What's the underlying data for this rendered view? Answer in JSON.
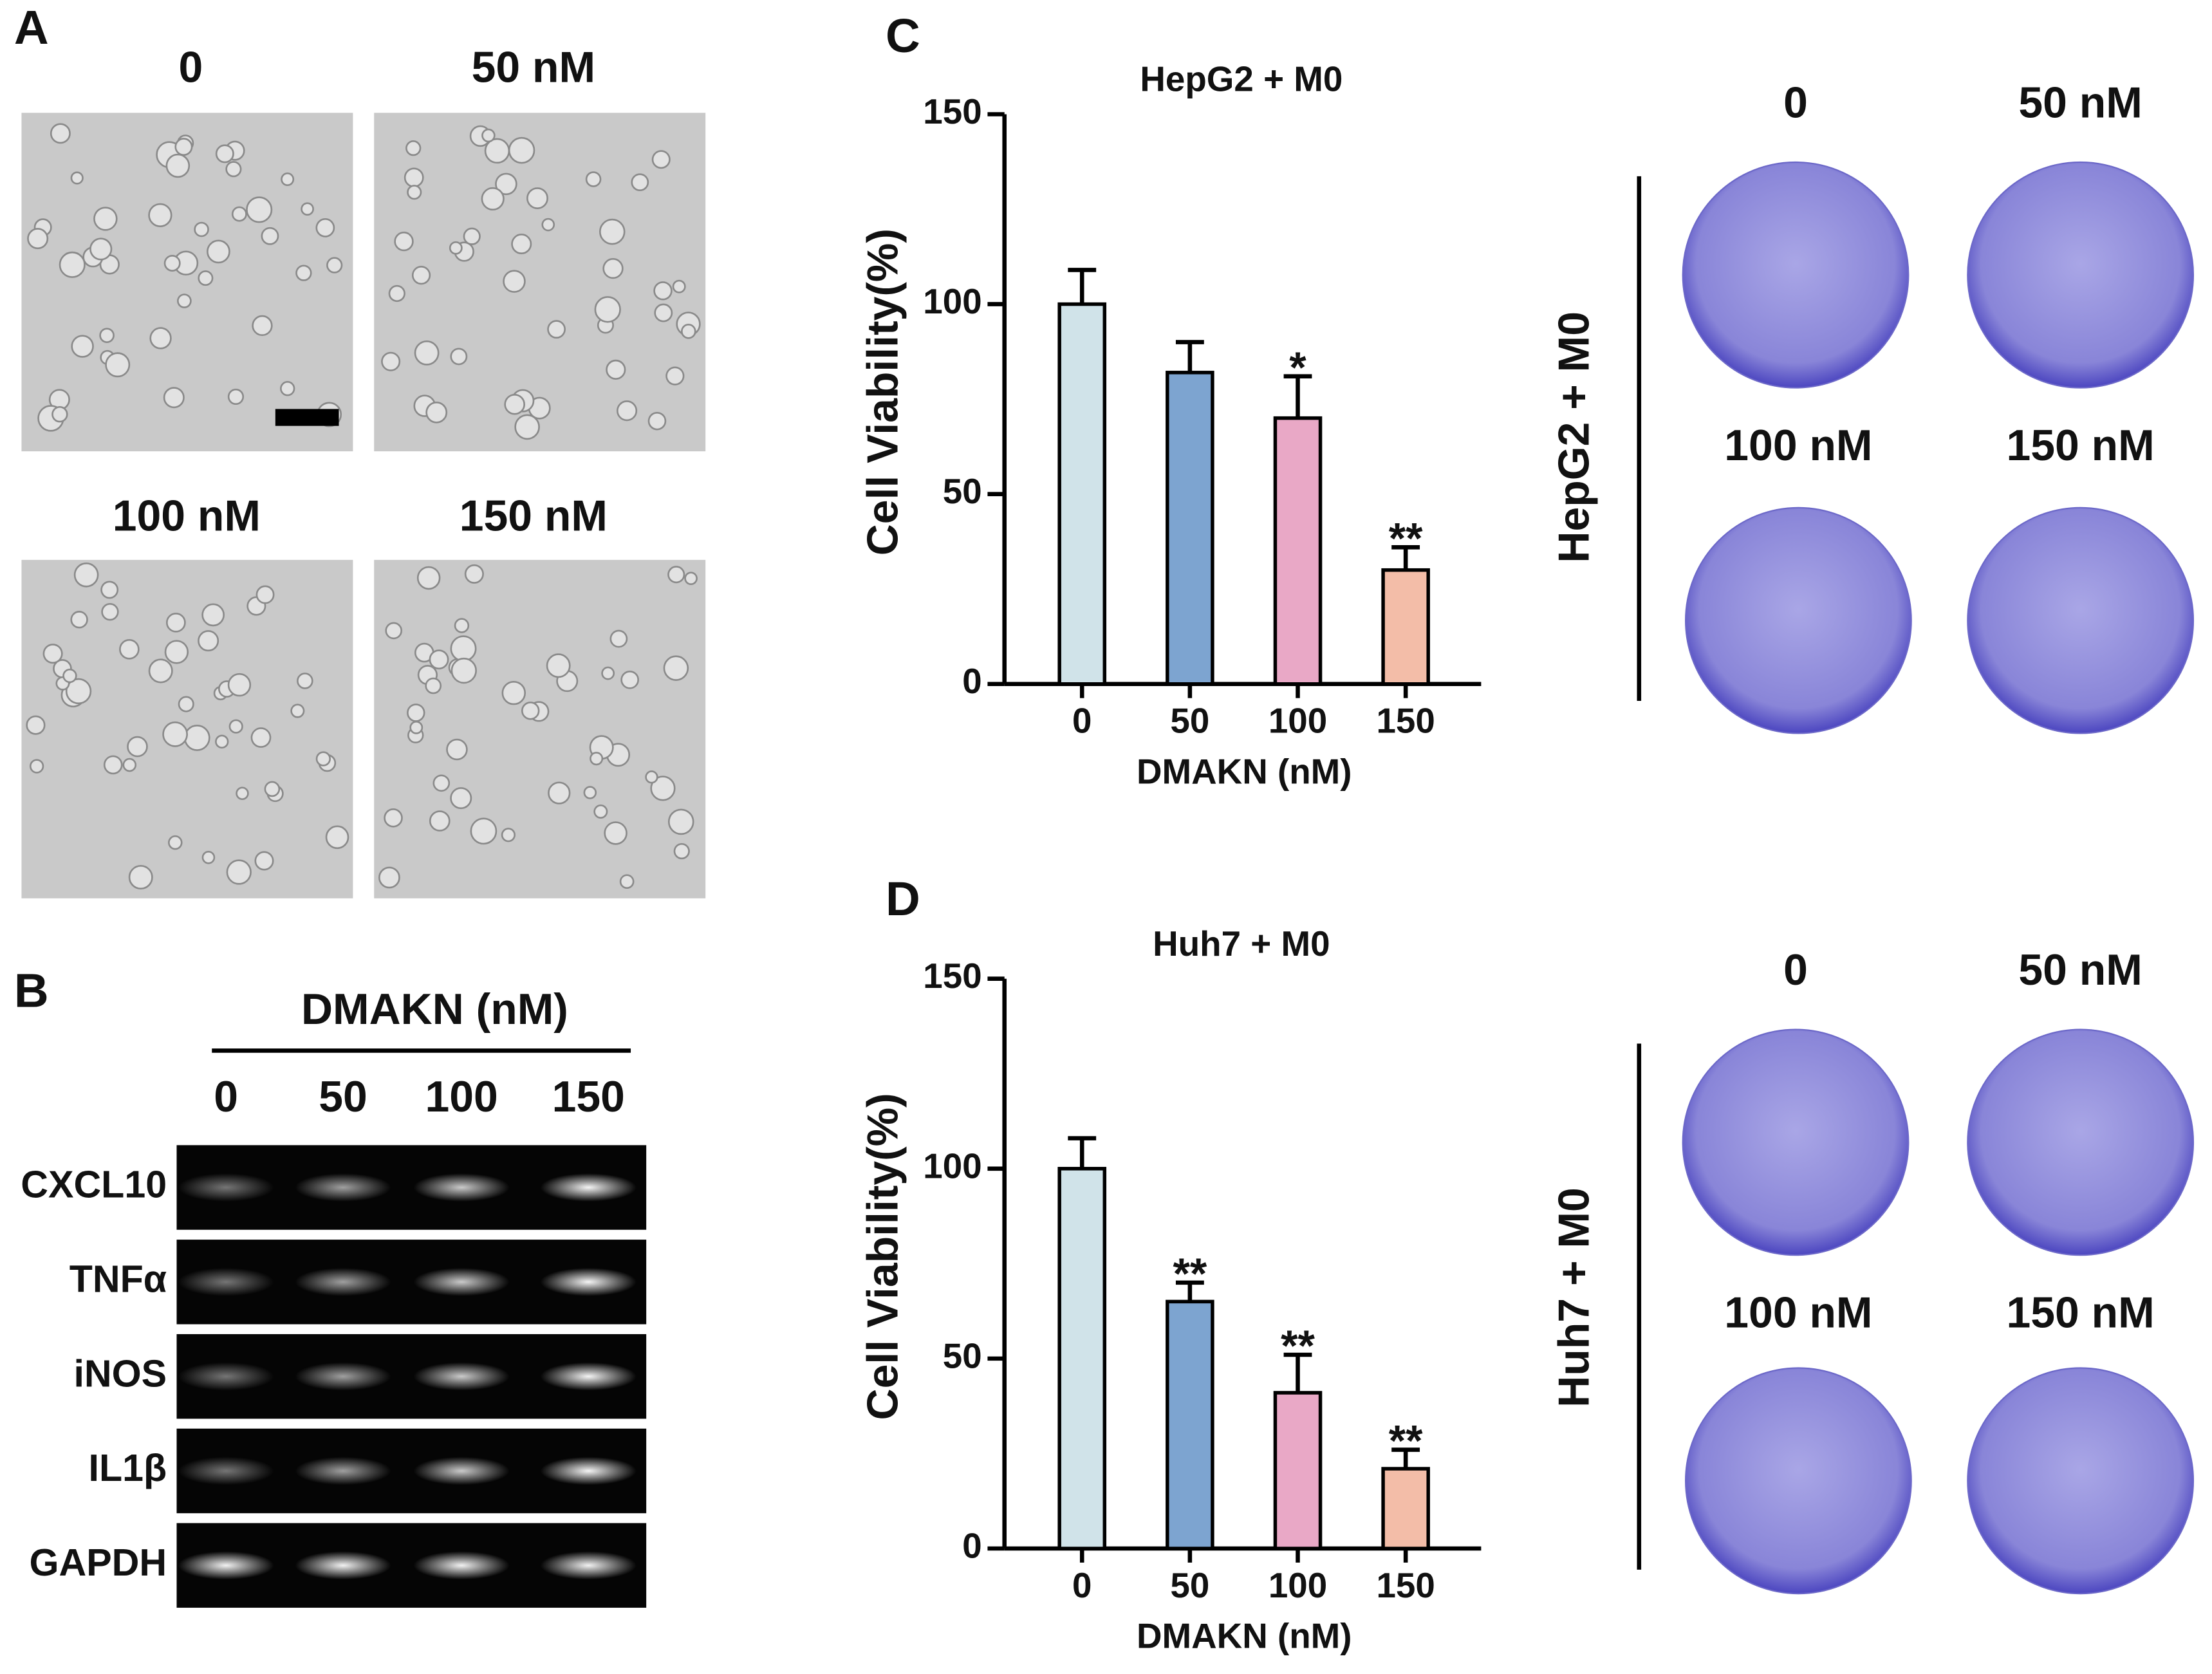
{
  "panel_a": {
    "letter": "A",
    "labels": [
      "0",
      "50 nM",
      "100 nM",
      "150 nM"
    ]
  },
  "panel_b": {
    "letter": "B",
    "header": "DMAKN (nM)",
    "lanes": [
      "0",
      "50",
      "100",
      "150"
    ],
    "genes": [
      "CXCL10",
      "TNFα",
      "iNOS",
      "IL1β",
      "GAPDH"
    ]
  },
  "panel_c": {
    "letter": "C",
    "plate_group": "HepG2 + M0",
    "plate_labels": [
      "0",
      "50 nM",
      "100 nM",
      "150 nM"
    ]
  },
  "panel_d": {
    "letter": "D",
    "plate_group": "Huh7 + M0",
    "plate_labels": [
      "0",
      "50 nM",
      "100 nM",
      "150 nM"
    ]
  },
  "chart_data": [
    {
      "type": "bar",
      "title": "HepG2 + M0",
      "y_label": "Cell Viability(%)",
      "x_label": "DMAKN (nM)",
      "categories": [
        "0",
        "50",
        "100",
        "150"
      ],
      "values": [
        100,
        82,
        70,
        30
      ],
      "errors": [
        9,
        8,
        11,
        6
      ],
      "significance": [
        null,
        null,
        "*",
        "**"
      ],
      "colors": [
        "#d0e3e9",
        "#7da4d0",
        "#e9a8c6",
        "#f3bda8"
      ],
      "ylim": [
        0,
        150
      ],
      "yticks": [
        0,
        50,
        100,
        150
      ]
    },
    {
      "type": "bar",
      "title": "Huh7 + M0",
      "y_label": "Cell Viability(%)",
      "x_label": "DMAKN (nM)",
      "categories": [
        "0",
        "50",
        "100",
        "150"
      ],
      "values": [
        100,
        65,
        41,
        21
      ],
      "errors": [
        8,
        5,
        10,
        5
      ],
      "significance": [
        null,
        "**",
        "**",
        "**"
      ],
      "colors": [
        "#d0e3e9",
        "#7da4d0",
        "#e9a8c6",
        "#f3bda8"
      ],
      "ylim": [
        0,
        150
      ],
      "yticks": [
        0,
        50,
        100,
        150
      ]
    }
  ]
}
